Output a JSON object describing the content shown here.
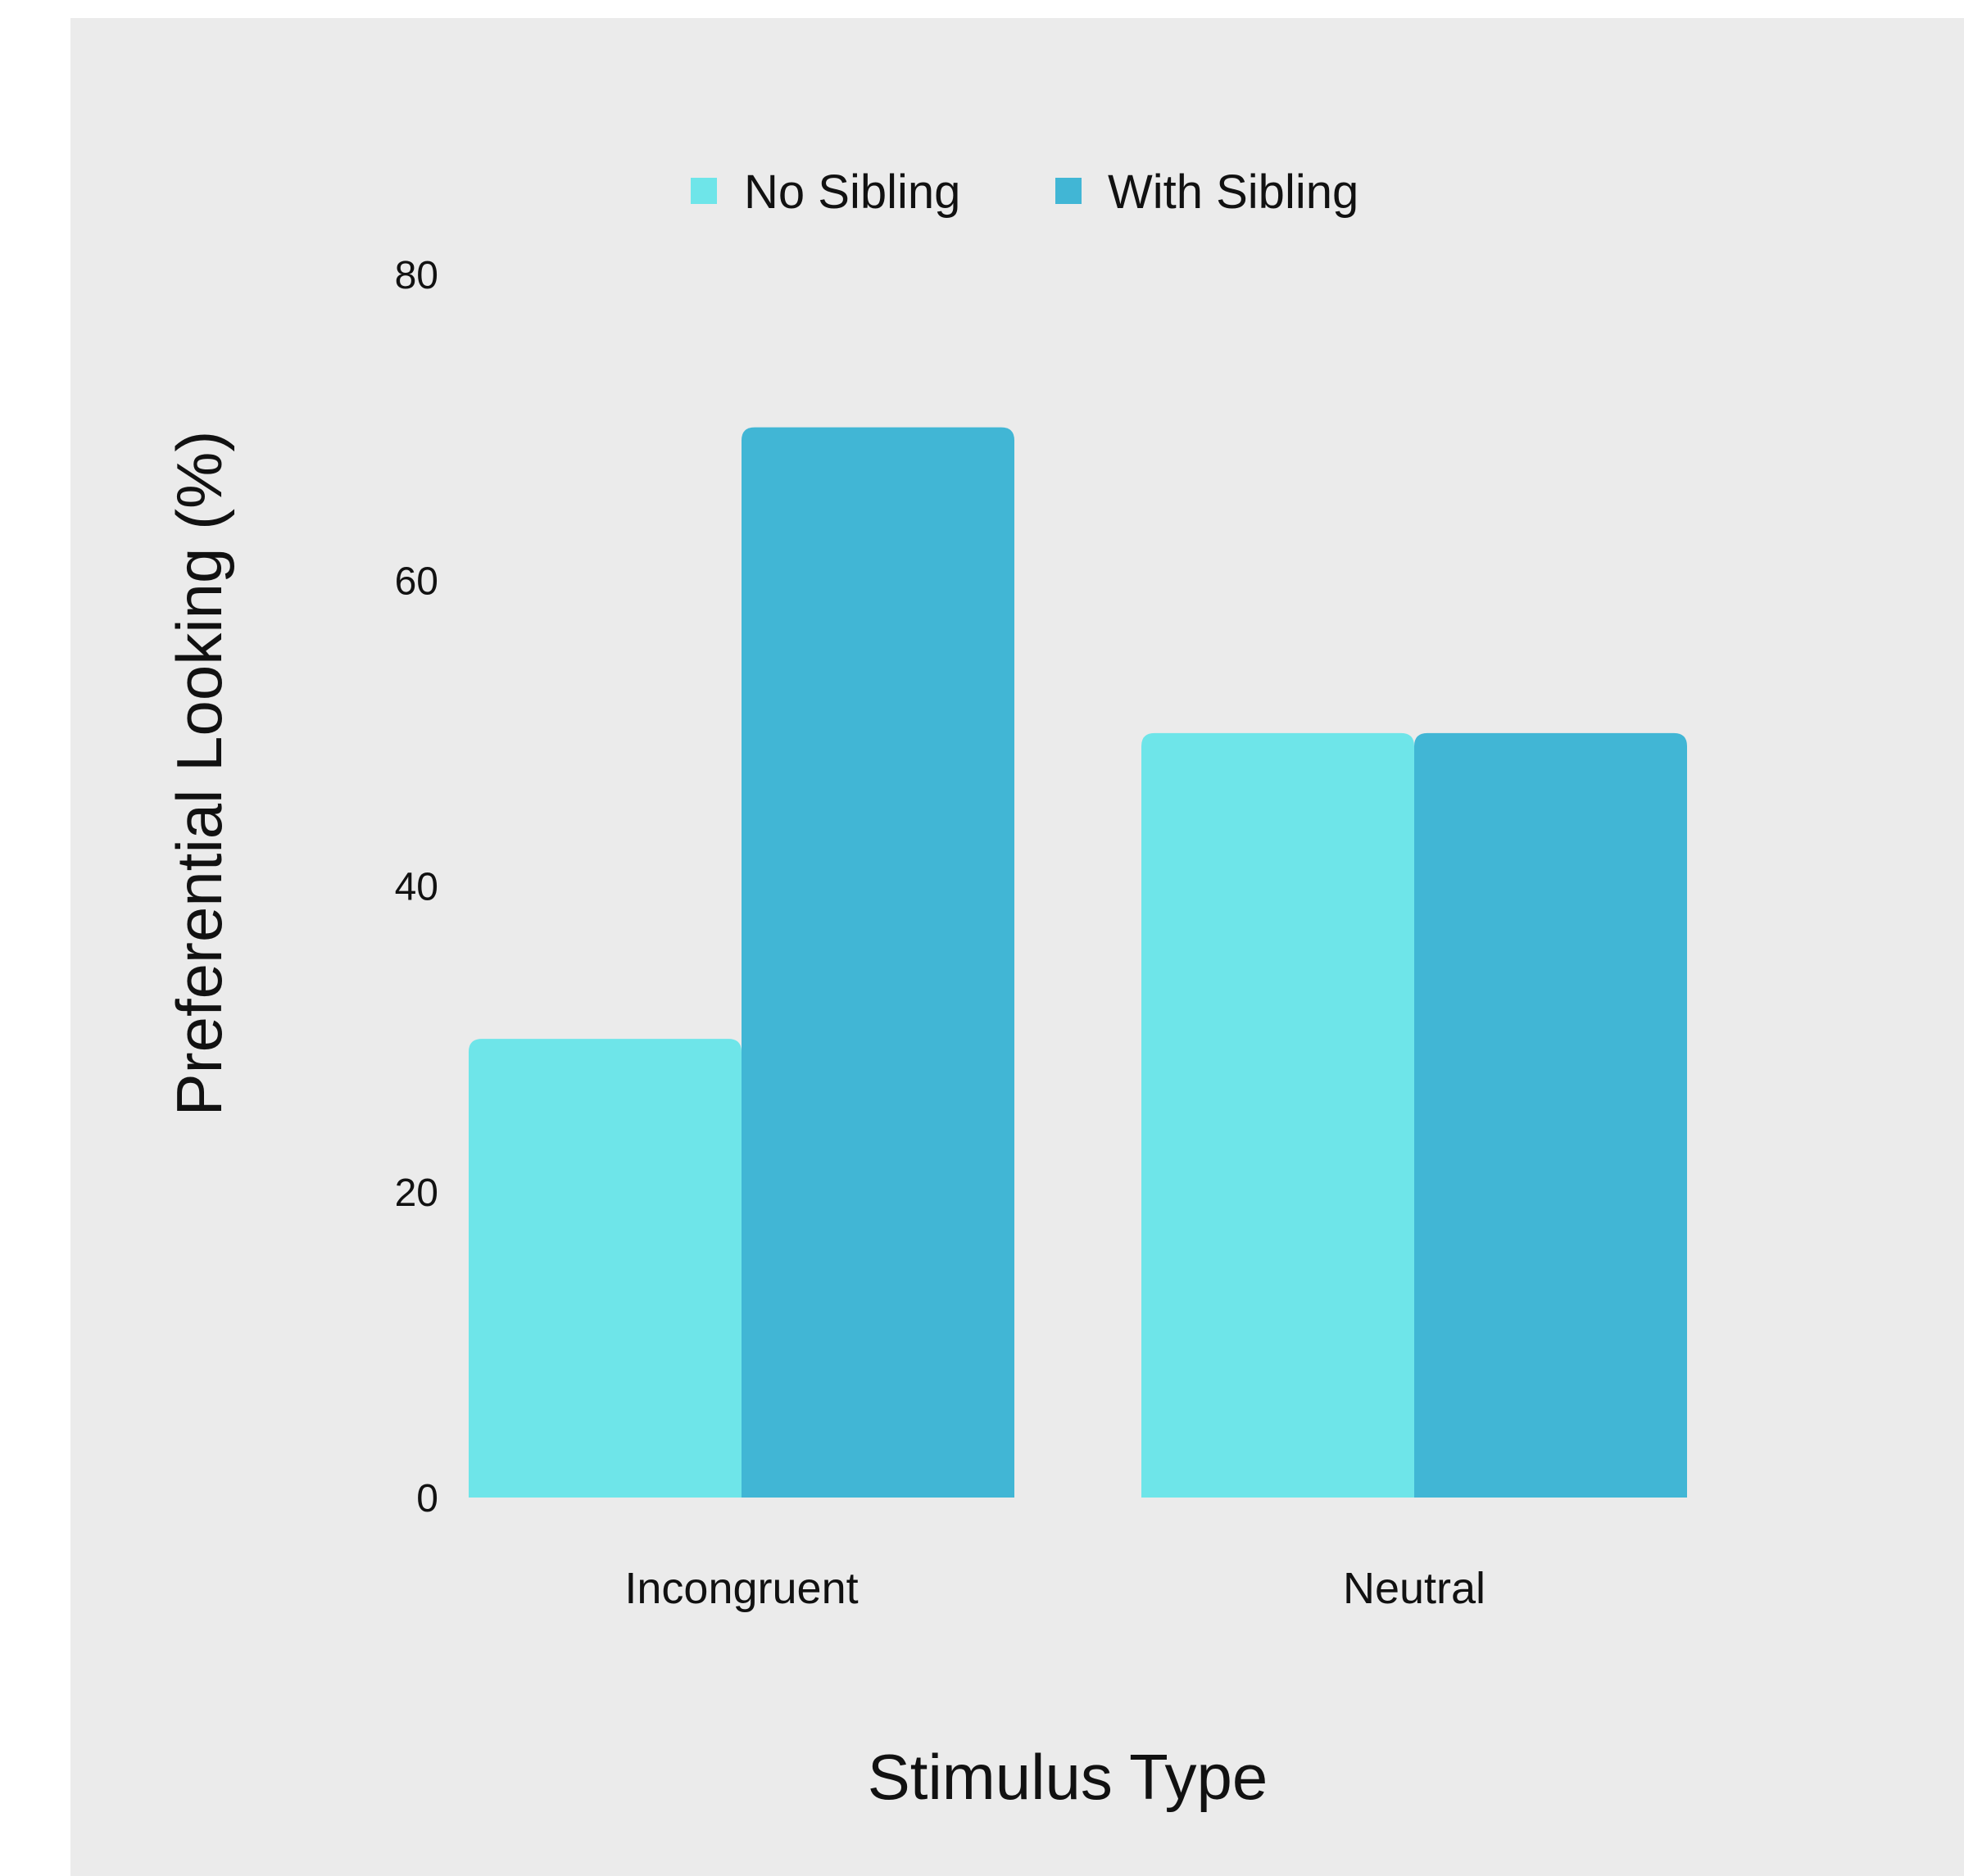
{
  "chart_data": {
    "type": "bar",
    "title": "",
    "categories": [
      "Incongruent",
      "Neutral"
    ],
    "series": [
      {
        "name": "No Sibling",
        "values": [
          30,
          50
        ],
        "color": "#6ee5e9"
      },
      {
        "name": "With Sibling",
        "values": [
          70,
          50
        ],
        "color": "#41b6d5"
      }
    ],
    "xlabel": "Stimulus Type",
    "ylabel": "Preferential Looking (%)",
    "ylim": [
      0,
      80
    ],
    "yticks": [
      "0",
      "20",
      "40",
      "60",
      "80"
    ],
    "grid": false,
    "legend_position": "top",
    "background_color": "#ebebeb"
  }
}
